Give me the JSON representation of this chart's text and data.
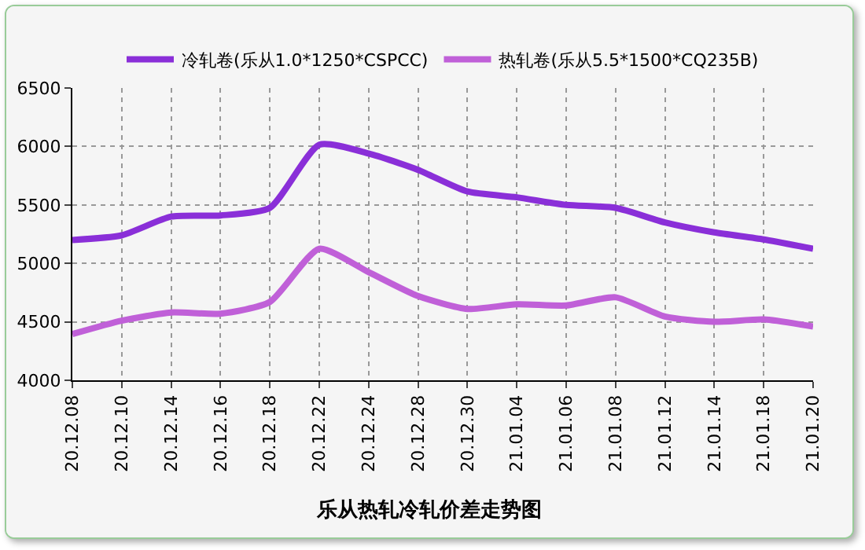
{
  "chart_data": {
    "type": "line",
    "title": "乐从热轧冷轧价差走势图",
    "categories": [
      "20.12.08",
      "20.12.10",
      "20.12.14",
      "20.12.16",
      "20.12.18",
      "20.12.22",
      "20.12.24",
      "20.12.28",
      "20.12.30",
      "21.01.04",
      "21.01.06",
      "21.01.08",
      "21.01.12",
      "21.01.14",
      "21.01.18",
      "21.01.20"
    ],
    "series": [
      {
        "name": "冷轧卷(乐从1.0*1250*CSPCC)",
        "color": "#8a2fd8",
        "values": [
          5200,
          5240,
          5400,
          5410,
          5475,
          6015,
          5940,
          5800,
          5615,
          5565,
          5500,
          5475,
          5350,
          5265,
          5205,
          5125
        ]
      },
      {
        "name": "热轧卷(乐从5.5*1500*CQ235B)",
        "color": "#c060d8",
        "values": [
          4395,
          4510,
          4580,
          4570,
          4670,
          5125,
          4925,
          4720,
          4610,
          4650,
          4640,
          4710,
          4545,
          4500,
          4520,
          4460
        ]
      }
    ],
    "ylim": [
      4000,
      6500
    ],
    "yticks": [
      4000,
      4500,
      5000,
      5500,
      6000,
      6500
    ],
    "grid": true,
    "legend": "top",
    "marker": "none",
    "line_style": "solid"
  }
}
